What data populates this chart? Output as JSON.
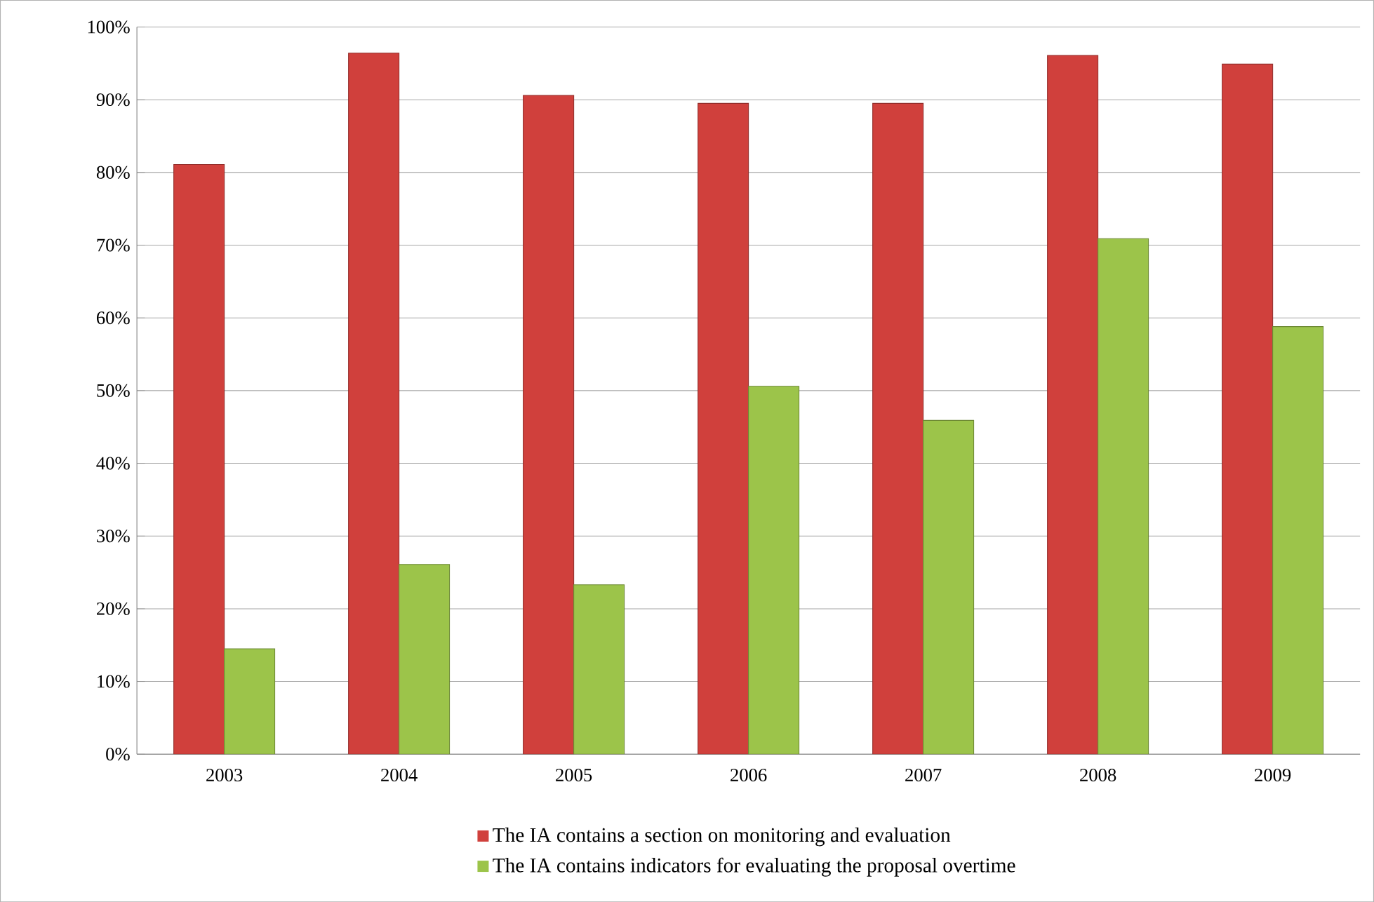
{
  "chart_data": {
    "type": "bar",
    "categories": [
      "2003",
      "2004",
      "2005",
      "2006",
      "2007",
      "2008",
      "2009"
    ],
    "series": [
      {
        "name": "The IA contains a section on monitoring and evaluation",
        "color": "#d0403c",
        "values": [
          81.1,
          96.4,
          90.6,
          89.5,
          89.5,
          96.1,
          94.9
        ]
      },
      {
        "name": "The IA contains indicators for evaluating the proposal overtime",
        "color": "#9cc44a",
        "values": [
          14.5,
          26.1,
          23.3,
          50.6,
          45.9,
          70.9,
          58.8
        ]
      }
    ],
    "ylim": [
      0,
      100
    ],
    "yticks": [
      {
        "value": 0,
        "label": "0%"
      },
      {
        "value": 10,
        "label": "10%"
      },
      {
        "value": 20,
        "label": "20%"
      },
      {
        "value": 30,
        "label": "30%"
      },
      {
        "value": 40,
        "label": "40%"
      },
      {
        "value": 50,
        "label": "50%"
      },
      {
        "value": 60,
        "label": "60%"
      },
      {
        "value": 70,
        "label": "70%"
      },
      {
        "value": 80,
        "label": "80%"
      },
      {
        "value": 90,
        "label": "90%"
      },
      {
        "value": 100,
        "label": "100%"
      }
    ],
    "grid": "y",
    "legend": "bottom"
  }
}
